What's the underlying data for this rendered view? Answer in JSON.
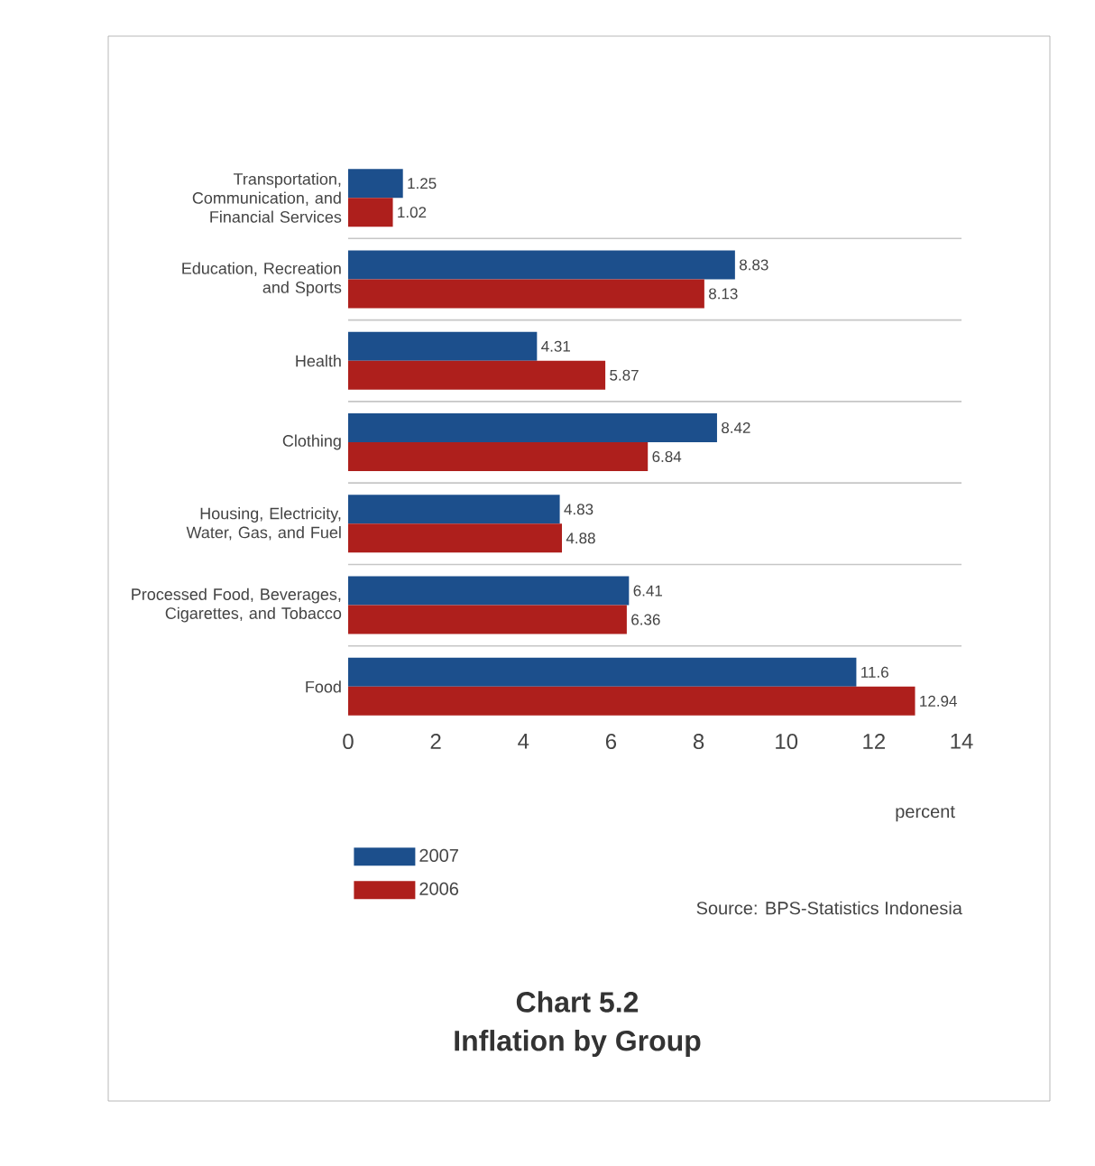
{
  "chart_data": {
    "type": "bar",
    "orientation": "horizontal",
    "title": "Chart 5.2",
    "subtitle": "Inflation by Group",
    "xlabel": "percent",
    "categories": [
      "Transportation, Communication, and Financial Services",
      "Education, Recreation and Sports",
      "Health",
      "Clothing",
      "Housing, Electricity, Water, Gas, and Fuel",
      "Processed Food, Beverages, Cigarettes, and Tobacco",
      "Food"
    ],
    "series": [
      {
        "name": "2007",
        "color": "#1c4f8c",
        "values": [
          1.25,
          8.83,
          4.31,
          8.42,
          4.83,
          6.41,
          11.6
        ],
        "value_labels": [
          "1.25",
          "8.83",
          "4.31",
          "8.42",
          "4.83",
          "6.41",
          "11.6"
        ]
      },
      {
        "name": "2006",
        "color": "#ae1f1c",
        "values": [
          1.02,
          8.13,
          5.87,
          6.84,
          4.88,
          6.36,
          12.94
        ],
        "value_labels": [
          "1.02",
          "8.13",
          "5.87",
          "6.84",
          "4.88",
          "6.36",
          "12.94"
        ]
      }
    ],
    "xlim": [
      0,
      14
    ],
    "xticks": [
      0,
      2,
      4,
      6,
      8,
      10,
      12,
      14
    ],
    "grid": "y",
    "legend": "bottom left",
    "annotations": [
      "Source: BPS-Statistics Indonesia"
    ]
  }
}
